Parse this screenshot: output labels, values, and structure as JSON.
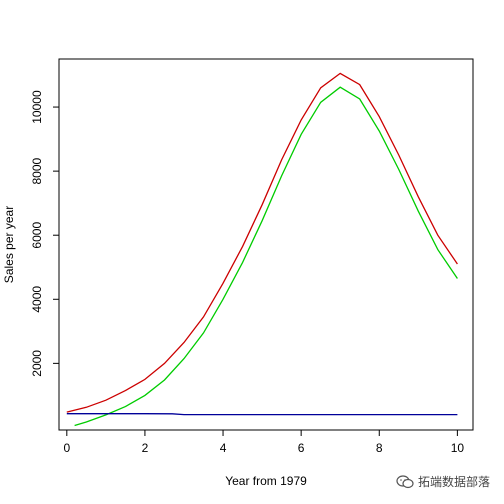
{
  "chart_data": {
    "type": "line",
    "xlabel": "Year from 1979",
    "ylabel": "Sales per year",
    "xlim": [
      -0.2,
      10.4
    ],
    "ylim": [
      -80,
      11500
    ],
    "x_ticks": [
      0,
      2,
      4,
      6,
      8,
      10
    ],
    "y_ticks": [
      2000,
      4000,
      6000,
      8000,
      10000
    ],
    "grid": false,
    "series": [
      {
        "color": "#cc0000",
        "x": [
          0,
          0.5,
          1,
          1.5,
          2,
          2.5,
          3,
          3.5,
          4,
          4.5,
          5,
          5.5,
          6,
          6.5,
          7,
          7.5,
          8,
          8.5,
          9,
          9.5,
          10
        ],
        "y": [
          480,
          630,
          850,
          1150,
          1500,
          2000,
          2650,
          3450,
          4500,
          5650,
          6950,
          8350,
          9600,
          10600,
          11050,
          10700,
          9700,
          8500,
          7200,
          6000,
          5100
        ]
      },
      {
        "color": "#00cc00",
        "x": [
          0.2,
          0.5,
          1,
          1.5,
          2,
          2.5,
          3,
          3.5,
          4,
          4.5,
          5,
          5.5,
          6,
          6.5,
          7,
          7.5,
          8,
          8.5,
          9,
          9.5,
          10
        ],
        "y": [
          60,
          170,
          390,
          650,
          1000,
          1480,
          2150,
          2950,
          4000,
          5150,
          6450,
          7850,
          9150,
          10150,
          10620,
          10250,
          9250,
          8050,
          6750,
          5550,
          4650
        ]
      },
      {
        "color": "#000099",
        "x": [
          0,
          1,
          2,
          2.7,
          3,
          4,
          5,
          6,
          7,
          8,
          9,
          10
        ],
        "y": [
          430,
          430,
          430,
          425,
          400,
          400,
          400,
          400,
          400,
          400,
          400,
          400
        ]
      }
    ]
  },
  "watermark": {
    "icon": "wechat-icon",
    "text": "拓端数据部落"
  }
}
